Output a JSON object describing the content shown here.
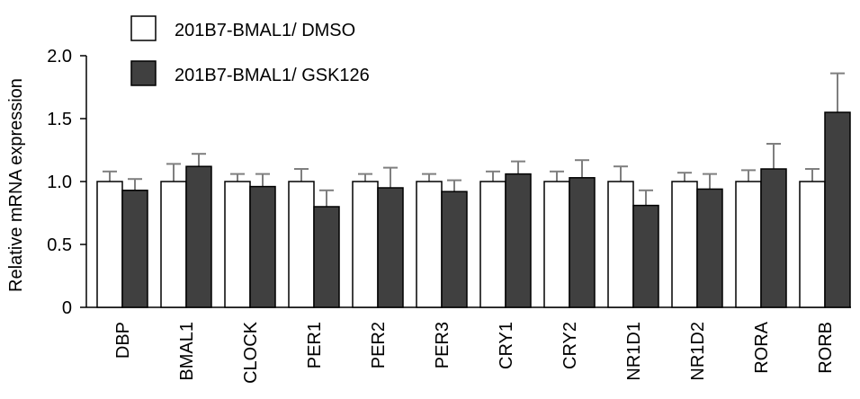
{
  "chart_data": {
    "type": "bar",
    "title": "",
    "xlabel": "",
    "ylabel": "Relative mRNA expression",
    "ylim": [
      0,
      2.0
    ],
    "yticks": [
      "0",
      "0.5",
      "1.0",
      "1.5",
      "2.0"
    ],
    "ytick_values": [
      0,
      0.5,
      1.0,
      1.5,
      2.0
    ],
    "grid": false,
    "legend_position": "top-left",
    "categories": [
      "DBP",
      "BMAL1",
      "CLOCK",
      "PER1",
      "PER2",
      "PER3",
      "CRY1",
      "CRY2",
      "NR1D1",
      "NR1D2",
      "RORA",
      "RORB"
    ],
    "series": [
      {
        "name": "201B7-BMAL1/ DMSO",
        "color": "#ffffff",
        "values": [
          1.0,
          1.0,
          1.0,
          1.0,
          1.0,
          1.0,
          1.0,
          1.0,
          1.0,
          1.0,
          1.0,
          1.0
        ],
        "errors": [
          0.08,
          0.14,
          0.06,
          0.1,
          0.06,
          0.06,
          0.08,
          0.08,
          0.12,
          0.07,
          0.09,
          0.1
        ]
      },
      {
        "name": "201B7-BMAL1/ GSK126",
        "color": "#404040",
        "values": [
          0.93,
          1.12,
          0.96,
          0.8,
          0.95,
          0.92,
          1.06,
          1.03,
          0.81,
          0.94,
          1.1,
          1.55
        ],
        "errors": [
          0.09,
          0.1,
          0.1,
          0.13,
          0.16,
          0.09,
          0.1,
          0.14,
          0.12,
          0.12,
          0.2,
          0.31
        ]
      }
    ]
  }
}
